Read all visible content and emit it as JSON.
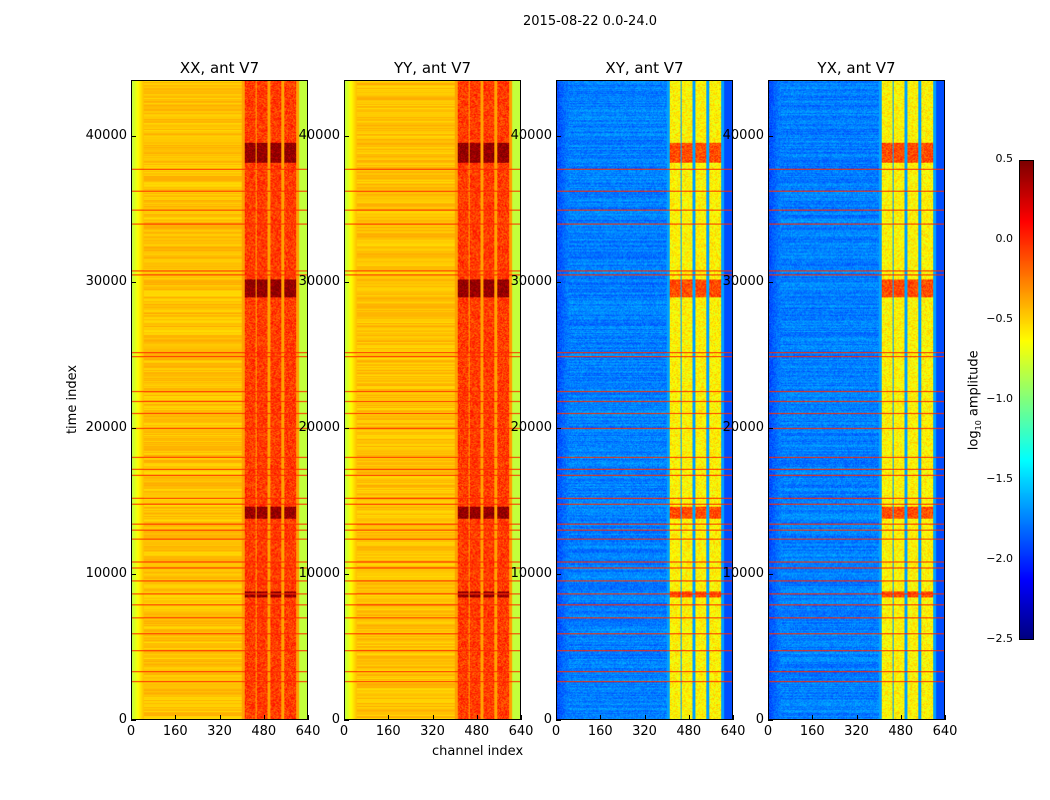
{
  "chart_data": {
    "type": "heatmap",
    "title": "2015-08-22 0.0-24.0",
    "xlabel": "channel index",
    "ylabel": "time index",
    "xlim": [
      0,
      640
    ],
    "ylim": [
      0,
      43800
    ],
    "xticks": [
      "0",
      "160",
      "320",
      "480",
      "640"
    ],
    "yticks": [
      "0",
      "10000",
      "20000",
      "30000",
      "40000"
    ],
    "panels": [
      {
        "title": "XX, ant V7",
        "base_level": -0.45,
        "band_level": -0.05,
        "edge_level": -0.8
      },
      {
        "title": "YY, ant V7",
        "base_level": -0.45,
        "band_level": -0.05,
        "edge_level": -0.8
      },
      {
        "title": "XY, ant V7",
        "base_level": -1.75,
        "band_level": -0.6,
        "edge_level": -1.9
      },
      {
        "title": "YX, ant V7",
        "base_level": -1.75,
        "band_level": -0.6,
        "edge_level": -1.9
      }
    ],
    "band_channels": [
      [
        410,
        450
      ],
      [
        455,
        495
      ],
      [
        505,
        545
      ],
      [
        555,
        600
      ]
    ],
    "strong_time_ranges": [
      [
        13800,
        14600
      ],
      [
        29000,
        30200
      ],
      [
        38200,
        39600
      ],
      [
        8400,
        8800
      ]
    ],
    "rfi_rows": [
      37800,
      36300,
      35000,
      34000,
      30800,
      30500,
      25200,
      24900,
      22500,
      21800,
      21000,
      20000,
      18000,
      17200,
      16800,
      15200,
      14800,
      13400,
      13000,
      12400,
      10800,
      10400,
      9500,
      8600,
      7900,
      7000,
      5900,
      4700,
      3300,
      2600
    ],
    "colorbar": {
      "label": "log10 amplitude",
      "label_base": "log",
      "label_sub": "10",
      "label_rest": " amplitude",
      "vmin": -2.5,
      "vmax": 0.5,
      "ticks": [
        "0.5",
        "0.0",
        "−0.5",
        "−1.0",
        "−1.5",
        "−2.0",
        "−2.5"
      ],
      "colormap": "jet"
    }
  }
}
